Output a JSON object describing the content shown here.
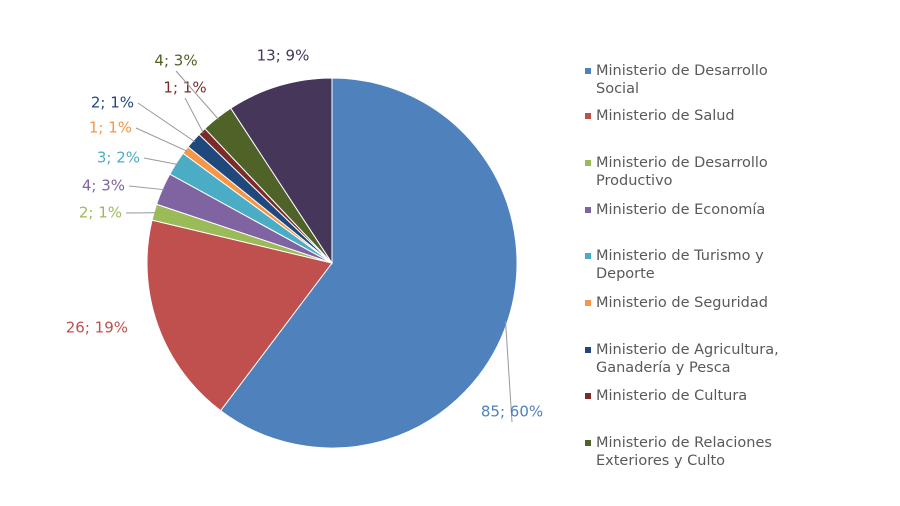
{
  "chart_data": {
    "type": "pie",
    "categories": [
      "Ministerio de Desarrollo Social",
      "Ministerio de Salud",
      "Ministerio de Desarrollo Productivo",
      "Ministerio de Economía",
      "Ministerio de Turismo y Deporte",
      "Ministerio de Seguridad",
      "Ministerio de Agricultura, Ganadería y Pesca",
      "Ministerio de Cultura",
      "Ministerio de Relaciones Exteriores y Culto",
      null
    ],
    "values": [
      85,
      26,
      2,
      4,
      3,
      1,
      2,
      1,
      4,
      13
    ],
    "value_labels": [
      "85; 60%",
      "26; 19%",
      "2; 1%",
      "4; 3%",
      "3; 2%",
      "1; 1%",
      "2; 1%",
      "1; 1%",
      "4; 3%",
      "13; 9%"
    ],
    "colors": [
      "#4f81bd",
      "#c0504d",
      "#9bbb59",
      "#8064a2",
      "#4bacc6",
      "#f79646",
      "#1f497d",
      "#7b2c2a",
      "#4f6228",
      "#46375a"
    ],
    "legend": "right"
  }
}
